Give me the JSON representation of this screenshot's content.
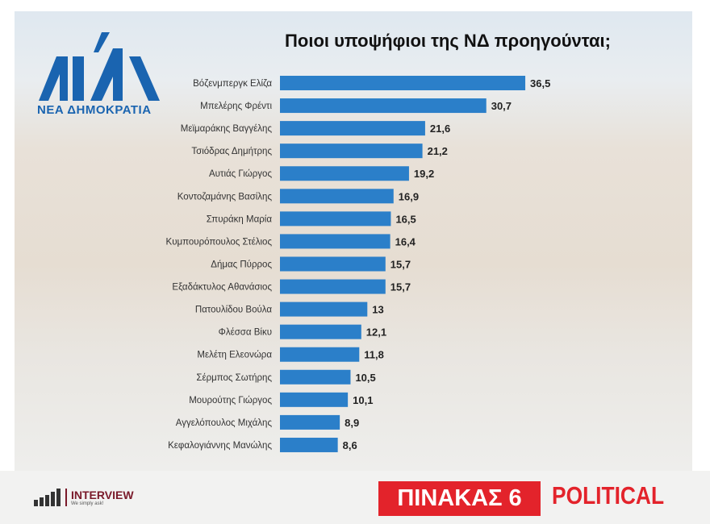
{
  "brand": {
    "party_logo_text": "ΝΕΑ ΔΗΜΟΚΡΑΤΙΑ",
    "pollster": "INTERVIEW",
    "pollster_tagline": "We simply ask!",
    "table_label": "ΠΙΝΑΚΑΣ 6",
    "publication": "POLITICAL"
  },
  "colors": {
    "bar": "#2b7fc9",
    "accent_red": "#e3232b",
    "party_blue": "#1a64b0"
  },
  "chart_data": {
    "type": "bar",
    "orientation": "horizontal",
    "title": "Ποιοι υποψήφιοι της ΝΔ προηγούνται;",
    "categories": [
      "Βόζενμπεργκ Ελίζα",
      "Μπελέρης Φρέντι",
      "Μεϊμαράκης Βαγγέλης",
      "Τσιόδρας Δημήτρης",
      "Αυτιάς Γιώργος",
      "Κοντοζαμάνης Βασίλης",
      "Σπυράκη Μαρία",
      "Κυμπουρόπουλος Στέλιος",
      "Δήμας Πύρρος",
      "Εξαδάκτυλος Αθανάσιος",
      "Πατουλίδου Βούλα",
      "Φλέσσα Βίκυ",
      "Μελέτη Ελεονώρα",
      "Σέρμπος Σωτήρης",
      "Μουρούτης Γιώργος",
      "Αγγελόπουλος Μιχάλης",
      "Κεφαλογιάννης Μανώλης"
    ],
    "values": [
      36.5,
      30.7,
      21.6,
      21.2,
      19.2,
      16.9,
      16.5,
      16.4,
      15.7,
      15.7,
      13,
      12.1,
      11.8,
      10.5,
      10.1,
      8.9,
      8.6
    ],
    "value_labels": [
      "36,5",
      "30,7",
      "21,6",
      "21,2",
      "19,2",
      "16,9",
      "16,5",
      "16,4",
      "15,7",
      "15,7",
      "13",
      "12,1",
      "11,8",
      "10,5",
      "10,1",
      "8,9",
      "8,6"
    ],
    "xlim": [
      0,
      40
    ],
    "grid": false,
    "axes_visible": false
  }
}
